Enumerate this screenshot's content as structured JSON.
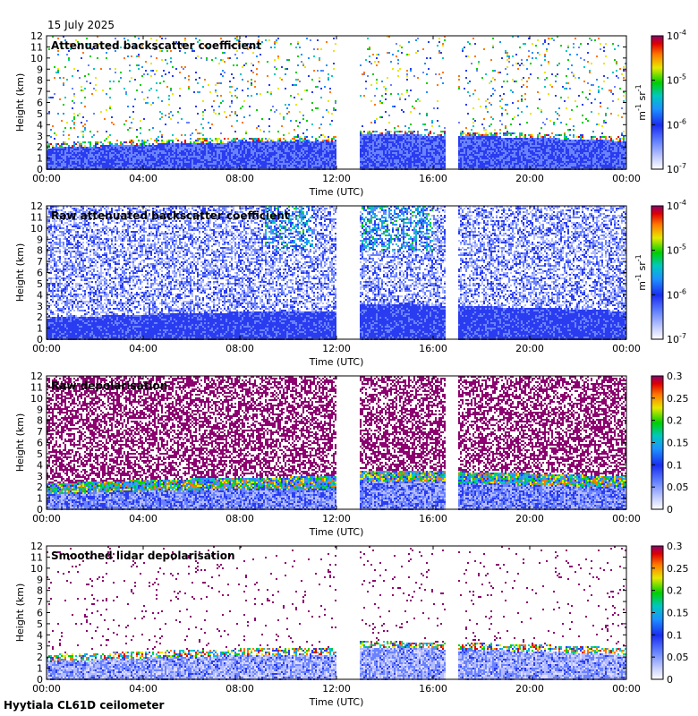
{
  "date_label": "15 July 2025",
  "footer_label": "Hyytiala CL61D ceilometer",
  "chart_data": [
    {
      "type": "heatmap",
      "title": "Attenuated backscatter coefficient",
      "xlabel": "Time (UTC)",
      "ylabel": "Height (km)",
      "xlim_hours": [
        0,
        24
      ],
      "ylim_km": [
        0,
        12
      ],
      "x_ticks": [
        "00:00",
        "04:00",
        "08:00",
        "12:00",
        "16:00",
        "20:00",
        "00:00"
      ],
      "y_ticks": [
        "0",
        "1",
        "2",
        "3",
        "4",
        "5",
        "6",
        "7",
        "8",
        "9",
        "10",
        "11",
        "12"
      ],
      "data_gaps_hours": [
        [
          12.0,
          12.95
        ],
        [
          16.5,
          17.0
        ]
      ],
      "colorbar": {
        "scale": "log",
        "range": [
          1e-07,
          0.0001
        ],
        "tick_bases": [
          "10",
          "10",
          "10",
          "10"
        ],
        "tick_exps": [
          "-7",
          "-6",
          "-5",
          "-4"
        ],
        "unit_parts": [
          "m",
          "-1",
          " sr",
          "-1"
        ]
      },
      "colormap": "rainbow-white"
    },
    {
      "type": "heatmap",
      "title": "Raw attenuated backscatter coefficient",
      "xlabel": "Time (UTC)",
      "ylabel": "Height (km)",
      "xlim_hours": [
        0,
        24
      ],
      "ylim_km": [
        0,
        12
      ],
      "x_ticks": [
        "00:00",
        "04:00",
        "08:00",
        "12:00",
        "16:00",
        "20:00",
        "00:00"
      ],
      "y_ticks": [
        "0",
        "1",
        "2",
        "3",
        "4",
        "5",
        "6",
        "7",
        "8",
        "9",
        "10",
        "11",
        "12"
      ],
      "data_gaps_hours": [
        [
          12.0,
          12.95
        ],
        [
          16.5,
          17.0
        ]
      ],
      "colorbar": {
        "scale": "log",
        "range": [
          1e-07,
          0.0001
        ],
        "tick_bases": [
          "10",
          "10",
          "10",
          "10"
        ],
        "tick_exps": [
          "-7",
          "-6",
          "-5",
          "-4"
        ],
        "unit_parts": [
          "m",
          "-1",
          " sr",
          "-1"
        ]
      },
      "colormap": "rainbow-white"
    },
    {
      "type": "heatmap",
      "title": "Raw depolarisation",
      "xlabel": "Time (UTC)",
      "ylabel": "Height (km)",
      "xlim_hours": [
        0,
        24
      ],
      "ylim_km": [
        0,
        12
      ],
      "x_ticks": [
        "00:00",
        "04:00",
        "08:00",
        "12:00",
        "16:00",
        "20:00",
        "00:00"
      ],
      "y_ticks": [
        "0",
        "1",
        "2",
        "3",
        "4",
        "5",
        "6",
        "7",
        "8",
        "9",
        "10",
        "11",
        "12"
      ],
      "data_gaps_hours": [
        [
          12.0,
          12.95
        ],
        [
          16.5,
          17.0
        ]
      ],
      "colorbar": {
        "scale": "linear",
        "range": [
          0,
          0.3
        ],
        "ticks": [
          "0",
          "0.05",
          "0.1",
          "0.15",
          "0.2",
          "0.25",
          "0.3"
        ]
      },
      "colormap": "rainbow-white"
    },
    {
      "type": "heatmap",
      "title": "Smoothed lidar depolarisation",
      "xlabel": "Time (UTC)",
      "ylabel": "Height (km)",
      "xlim_hours": [
        0,
        24
      ],
      "ylim_km": [
        0,
        12
      ],
      "x_ticks": [
        "00:00",
        "04:00",
        "08:00",
        "12:00",
        "16:00",
        "20:00",
        "00:00"
      ],
      "y_ticks": [
        "0",
        "1",
        "2",
        "3",
        "4",
        "5",
        "6",
        "7",
        "8",
        "9",
        "10",
        "11",
        "12"
      ],
      "data_gaps_hours": [
        [
          12.0,
          12.95
        ],
        [
          16.5,
          17.0
        ]
      ],
      "colorbar": {
        "scale": "linear",
        "range": [
          0,
          0.3
        ],
        "ticks": [
          "0",
          "0.05",
          "0.1",
          "0.15",
          "0.2",
          "0.25",
          "0.3"
        ]
      },
      "colormap": "rainbow-white"
    }
  ]
}
